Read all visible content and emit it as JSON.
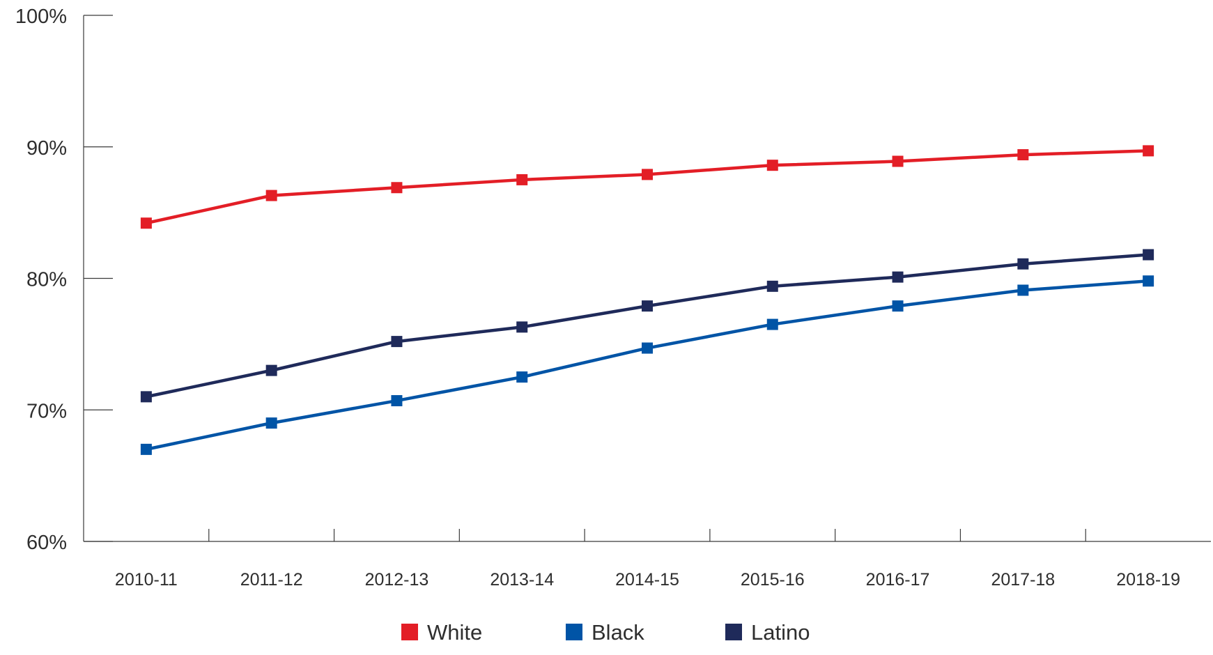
{
  "chart_data": {
    "type": "line",
    "title": "",
    "xlabel": "",
    "ylabel": "",
    "categories": [
      "2010-11",
      "2011-12",
      "2012-13",
      "2013-14",
      "2014-15",
      "2015-16",
      "2016-17",
      "2017-18",
      "2018-19"
    ],
    "y_ticks": [
      "60%",
      "70%",
      "80%",
      "90%",
      "100%"
    ],
    "ylim": [
      60,
      100
    ],
    "grid": false,
    "legend_position": "bottom-center",
    "series": [
      {
        "name": "White",
        "color": "#e31e26",
        "values": [
          84.2,
          86.3,
          86.9,
          87.5,
          87.9,
          88.6,
          88.9,
          89.4,
          89.7
        ]
      },
      {
        "name": "Black",
        "color": "#0054a6",
        "values": [
          67.0,
          69.0,
          70.7,
          72.5,
          74.7,
          76.5,
          77.9,
          79.1,
          79.8
        ]
      },
      {
        "name": "Latino",
        "color": "#1f2a5a",
        "values": [
          71.0,
          73.0,
          75.2,
          76.3,
          77.9,
          79.4,
          80.1,
          81.1,
          81.8
        ]
      }
    ]
  }
}
